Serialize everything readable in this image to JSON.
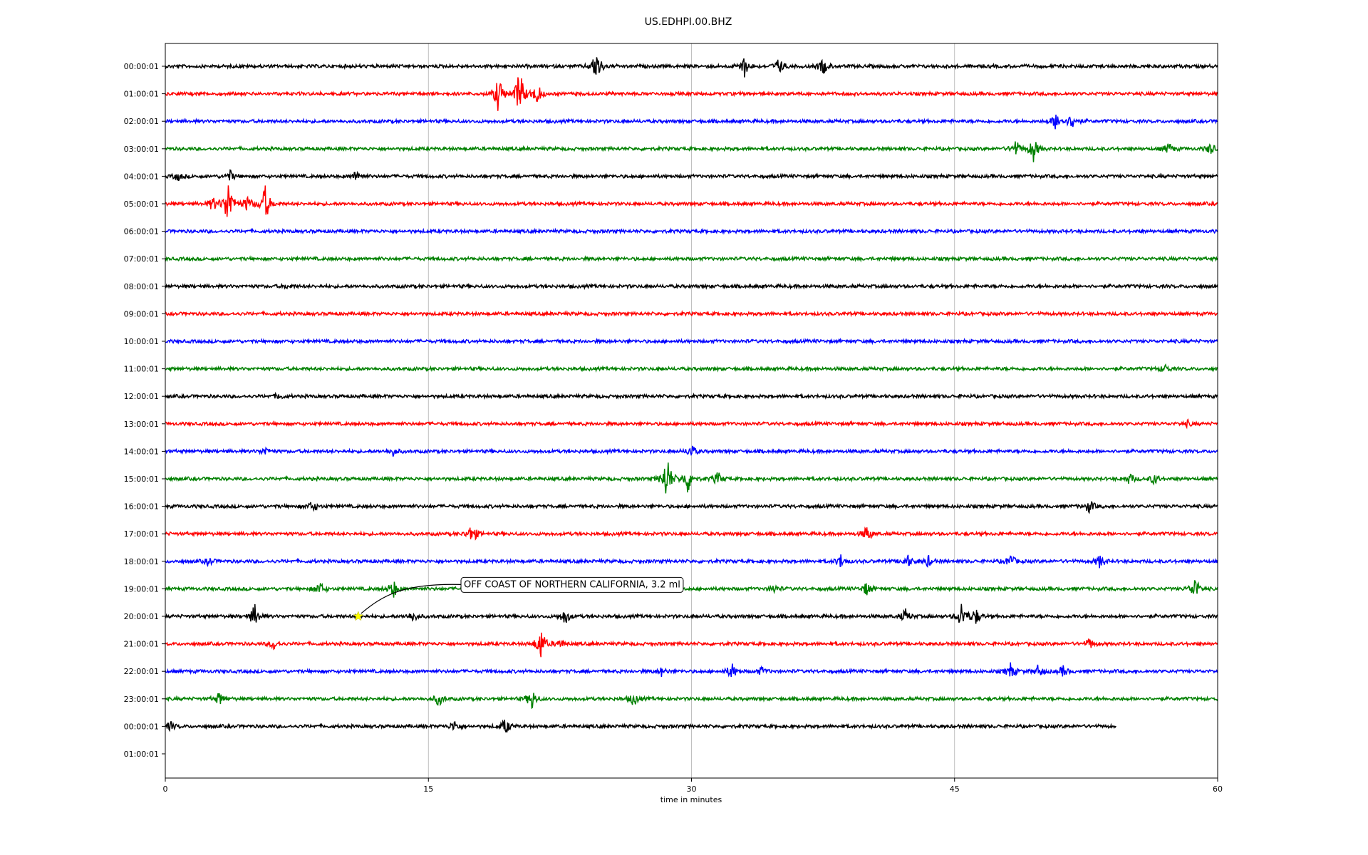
{
  "chart_data": {
    "type": "line",
    "title": "US.EDHPI.00.BHZ",
    "xlabel": "time in minutes",
    "ylabel": "",
    "xlim": [
      0,
      60
    ],
    "xticks": [
      "0",
      "15",
      "30",
      "45",
      "60"
    ],
    "xtick_values": [
      0,
      15,
      30,
      45,
      60
    ],
    "grid_x": true,
    "colors": [
      "#000000",
      "#ff0000",
      "#0000ff",
      "#008000"
    ],
    "rows": [
      {
        "label": "00:00:01",
        "end": 60,
        "events": [
          [
            24.6,
            1.3
          ],
          [
            33.0,
            0.8
          ],
          [
            35.0,
            0.6
          ],
          [
            37.5,
            0.6
          ]
        ]
      },
      {
        "label": "01:00:01",
        "end": 60,
        "events": [
          [
            19.0,
            1.4
          ],
          [
            20.2,
            1.9
          ],
          [
            21.2,
            0.8
          ]
        ]
      },
      {
        "label": "02:00:01",
        "end": 60,
        "events": [
          [
            50.8,
            0.7
          ],
          [
            51.7,
            0.6
          ]
        ]
      },
      {
        "label": "03:00:01",
        "end": 60,
        "events": [
          [
            48.5,
            0.6
          ],
          [
            49.5,
            0.9
          ],
          [
            57.2,
            0.4
          ],
          [
            59.6,
            0.4
          ]
        ]
      },
      {
        "label": "04:00:01",
        "end": 60,
        "events": [
          [
            0.7,
            0.3
          ],
          [
            3.7,
            0.4
          ],
          [
            10.9,
            0.4
          ]
        ]
      },
      {
        "label": "05:00:01",
        "end": 60,
        "events": [
          [
            2.7,
            0.5
          ],
          [
            3.6,
            1.9
          ],
          [
            4.7,
            0.6
          ],
          [
            5.7,
            1.4
          ]
        ]
      },
      {
        "label": "06:00:01",
        "end": 60,
        "events": []
      },
      {
        "label": "07:00:01",
        "end": 60,
        "events": []
      },
      {
        "label": "08:00:01",
        "end": 60,
        "events": [
          [
            7.0,
            0.15
          ]
        ]
      },
      {
        "label": "09:00:01",
        "end": 60,
        "events": []
      },
      {
        "label": "10:00:01",
        "end": 60,
        "events": []
      },
      {
        "label": "11:00:01",
        "end": 60,
        "events": [
          [
            57.0,
            0.3
          ]
        ]
      },
      {
        "label": "12:00:01",
        "end": 60,
        "events": [
          [
            6.5,
            0.2
          ]
        ]
      },
      {
        "label": "13:00:01",
        "end": 60,
        "events": [
          [
            58.3,
            0.2
          ]
        ]
      },
      {
        "label": "14:00:01",
        "end": 60,
        "events": [
          [
            5.7,
            0.3
          ],
          [
            13.0,
            0.3
          ],
          [
            30.0,
            0.5
          ]
        ]
      },
      {
        "label": "15:00:01",
        "end": 60,
        "events": [
          [
            28.6,
            1.9
          ],
          [
            29.8,
            1.1
          ],
          [
            31.5,
            0.5
          ],
          [
            55.0,
            0.4
          ],
          [
            56.4,
            0.4
          ]
        ]
      },
      {
        "label": "16:00:01",
        "end": 60,
        "events": [
          [
            8.4,
            0.4
          ],
          [
            52.7,
            0.5
          ]
        ]
      },
      {
        "label": "17:00:01",
        "end": 60,
        "events": [
          [
            17.5,
            0.8
          ],
          [
            40.0,
            0.6
          ]
        ]
      },
      {
        "label": "18:00:01",
        "end": 60,
        "events": [
          [
            2.5,
            0.3
          ],
          [
            38.5,
            0.5
          ],
          [
            42.3,
            0.5
          ],
          [
            43.5,
            0.4
          ],
          [
            48.2,
            0.5
          ],
          [
            53.3,
            0.5
          ]
        ]
      },
      {
        "label": "19:00:01",
        "end": 60,
        "events": [
          [
            8.8,
            0.5
          ],
          [
            13.0,
            0.7
          ],
          [
            34.7,
            0.3
          ],
          [
            40.0,
            0.5
          ],
          [
            58.7,
            0.9
          ]
        ]
      },
      {
        "label": "20:00:01",
        "end": 60,
        "events": [
          [
            5.1,
            0.9
          ],
          [
            14.1,
            0.4
          ],
          [
            22.8,
            0.6
          ],
          [
            42.2,
            0.5
          ],
          [
            45.4,
            1.0
          ],
          [
            46.2,
            0.6
          ]
        ]
      },
      {
        "label": "21:00:01",
        "end": 60,
        "events": [
          [
            6.2,
            0.4
          ],
          [
            21.4,
            1.3
          ],
          [
            22.5,
            0.3
          ],
          [
            52.7,
            0.4
          ]
        ]
      },
      {
        "label": "22:00:01",
        "end": 60,
        "events": [
          [
            28.3,
            0.3
          ],
          [
            32.3,
            0.6
          ],
          [
            34.0,
            0.3
          ],
          [
            48.2,
            0.6
          ],
          [
            49.8,
            0.5
          ],
          [
            51.2,
            0.4
          ]
        ]
      },
      {
        "label": "23:00:01",
        "end": 60,
        "events": [
          [
            3.1,
            0.5
          ],
          [
            15.6,
            0.5
          ],
          [
            20.9,
            0.8
          ],
          [
            26.7,
            0.5
          ]
        ]
      },
      {
        "label": "00:00:01",
        "end": 54.2,
        "events": [
          [
            0.3,
            0.3
          ],
          [
            16.5,
            0.4
          ],
          [
            19.4,
            0.6
          ]
        ]
      },
      {
        "label": "01:00:01",
        "end": 0,
        "events": []
      }
    ],
    "annotation": {
      "text": "OFF COAST OF NORTHERN CALIFORNIA, 3.2 ml",
      "row": 20,
      "x": 11.0,
      "marker_color": "#ffff00"
    }
  }
}
